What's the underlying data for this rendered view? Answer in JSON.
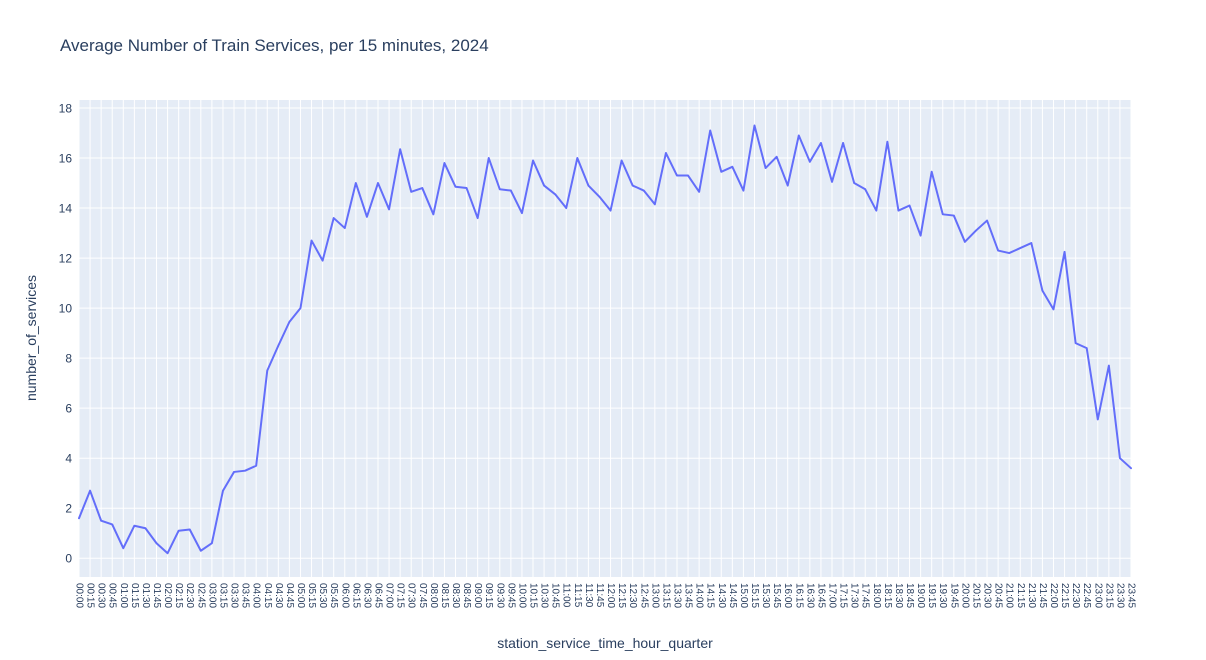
{
  "chart_data": {
    "type": "line",
    "title": "Average Number of Train Services, per 15 minutes, 2024",
    "xlabel": "station_service_time_hour_quarter",
    "ylabel": "number_of_services",
    "legend": "none",
    "grid": true,
    "line_color": "#636efa",
    "plot_bg": "#e5ecf6",
    "grid_color": "#ffffff",
    "text_color": "#2a3f5f",
    "ylim": [
      -0.75,
      18.32
    ],
    "yticks": [
      0,
      2,
      4,
      6,
      8,
      10,
      12,
      14,
      16,
      18
    ],
    "x": [
      "00:00",
      "00:15",
      "00:30",
      "00:45",
      "01:00",
      "01:15",
      "01:30",
      "01:45",
      "02:00",
      "02:15",
      "02:30",
      "02:45",
      "03:00",
      "03:15",
      "03:30",
      "03:45",
      "04:00",
      "04:15",
      "04:30",
      "04:45",
      "05:00",
      "05:15",
      "05:30",
      "05:45",
      "06:00",
      "06:15",
      "06:30",
      "06:45",
      "07:00",
      "07:15",
      "07:30",
      "07:45",
      "08:00",
      "08:15",
      "08:30",
      "08:45",
      "09:00",
      "09:15",
      "09:30",
      "09:45",
      "10:00",
      "10:15",
      "10:30",
      "10:45",
      "11:00",
      "11:15",
      "11:30",
      "11:45",
      "12:00",
      "12:15",
      "12:30",
      "12:45",
      "13:00",
      "13:15",
      "13:30",
      "13:45",
      "14:00",
      "14:15",
      "14:30",
      "14:45",
      "15:00",
      "15:15",
      "15:30",
      "15:45",
      "16:00",
      "16:15",
      "16:30",
      "16:45",
      "17:00",
      "17:15",
      "17:30",
      "17:45",
      "18:00",
      "18:15",
      "18:30",
      "18:45",
      "19:00",
      "19:15",
      "19:30",
      "19:45",
      "20:00",
      "20:15",
      "20:30",
      "20:45",
      "21:00",
      "21:15",
      "21:30",
      "21:45",
      "22:00",
      "22:15",
      "22:30",
      "22:45",
      "23:00",
      "23:15",
      "23:30",
      "23:45"
    ],
    "values": [
      1.6,
      2.7,
      1.5,
      1.35,
      0.4,
      1.3,
      1.2,
      0.6,
      0.2,
      1.1,
      1.15,
      0.3,
      0.6,
      2.7,
      3.45,
      3.5,
      3.7,
      7.5,
      8.5,
      9.45,
      10.0,
      12.7,
      11.9,
      13.6,
      13.2,
      15.0,
      13.65,
      15.0,
      13.95,
      16.35,
      14.65,
      14.8,
      13.75,
      15.8,
      14.85,
      14.8,
      13.6,
      16.0,
      14.75,
      14.7,
      13.8,
      15.9,
      14.9,
      14.55,
      14.0,
      16.0,
      14.9,
      14.45,
      13.9,
      15.9,
      14.9,
      14.7,
      14.15,
      16.2,
      15.3,
      15.3,
      14.65,
      17.1,
      15.45,
      15.65,
      14.7,
      17.3,
      15.6,
      16.05,
      14.9,
      16.9,
      15.85,
      16.6,
      15.05,
      16.6,
      15.0,
      14.75,
      13.9,
      16.65,
      13.9,
      14.1,
      12.9,
      15.45,
      13.75,
      13.7,
      12.65,
      13.1,
      13.5,
      12.3,
      12.2,
      12.4,
      12.6,
      10.7,
      9.95,
      12.25,
      8.6,
      8.4,
      5.55,
      7.7,
      4.0,
      3.6
    ]
  }
}
